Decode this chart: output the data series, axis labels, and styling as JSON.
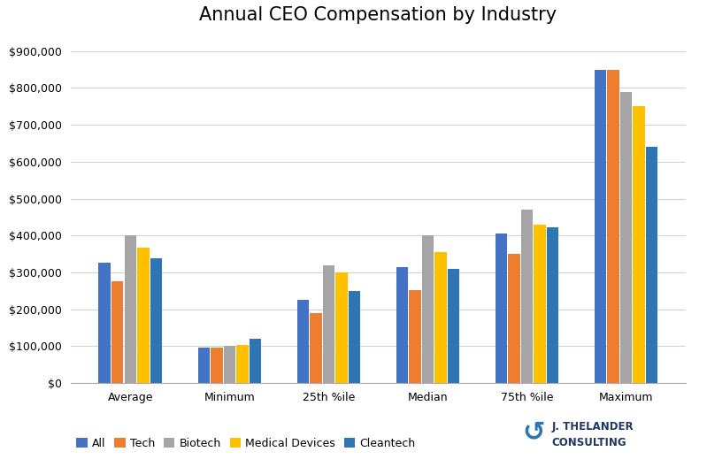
{
  "title": "Annual CEO Compensation by Industry",
  "categories": [
    "Average",
    "Minimum",
    "25th %ile",
    "Median",
    "75th %ile",
    "Maximum"
  ],
  "series": {
    "All": [
      325000,
      95000,
      225000,
      315000,
      405000,
      850000
    ],
    "Tech": [
      275000,
      97000,
      190000,
      252000,
      350000,
      850000
    ],
    "Biotech": [
      400000,
      100000,
      320000,
      400000,
      470000,
      790000
    ],
    "Medical Devices": [
      368000,
      103000,
      300000,
      355000,
      430000,
      750000
    ],
    "Cleantech": [
      338000,
      120000,
      250000,
      310000,
      422000,
      640000
    ]
  },
  "series_order": [
    "All",
    "Tech",
    "Biotech",
    "Medical Devices",
    "Cleantech"
  ],
  "colors": {
    "All": "#4472C4",
    "Tech": "#ED7D31",
    "Biotech": "#A5A5A5",
    "Medical Devices": "#FFC000",
    "Cleantech": "#2E75B6"
  },
  "ylim": [
    0,
    950000
  ],
  "yticks": [
    0,
    100000,
    200000,
    300000,
    400000,
    500000,
    600000,
    700000,
    800000,
    900000
  ],
  "background_color": "#FFFFFF",
  "grid_color": "#D3D3D3",
  "title_fontsize": 15,
  "legend_fontsize": 9,
  "tick_fontsize": 9,
  "bar_width": 0.13,
  "logo_text": "J. THELANDER\nCONSULTING",
  "logo_color": "#2E75B6"
}
